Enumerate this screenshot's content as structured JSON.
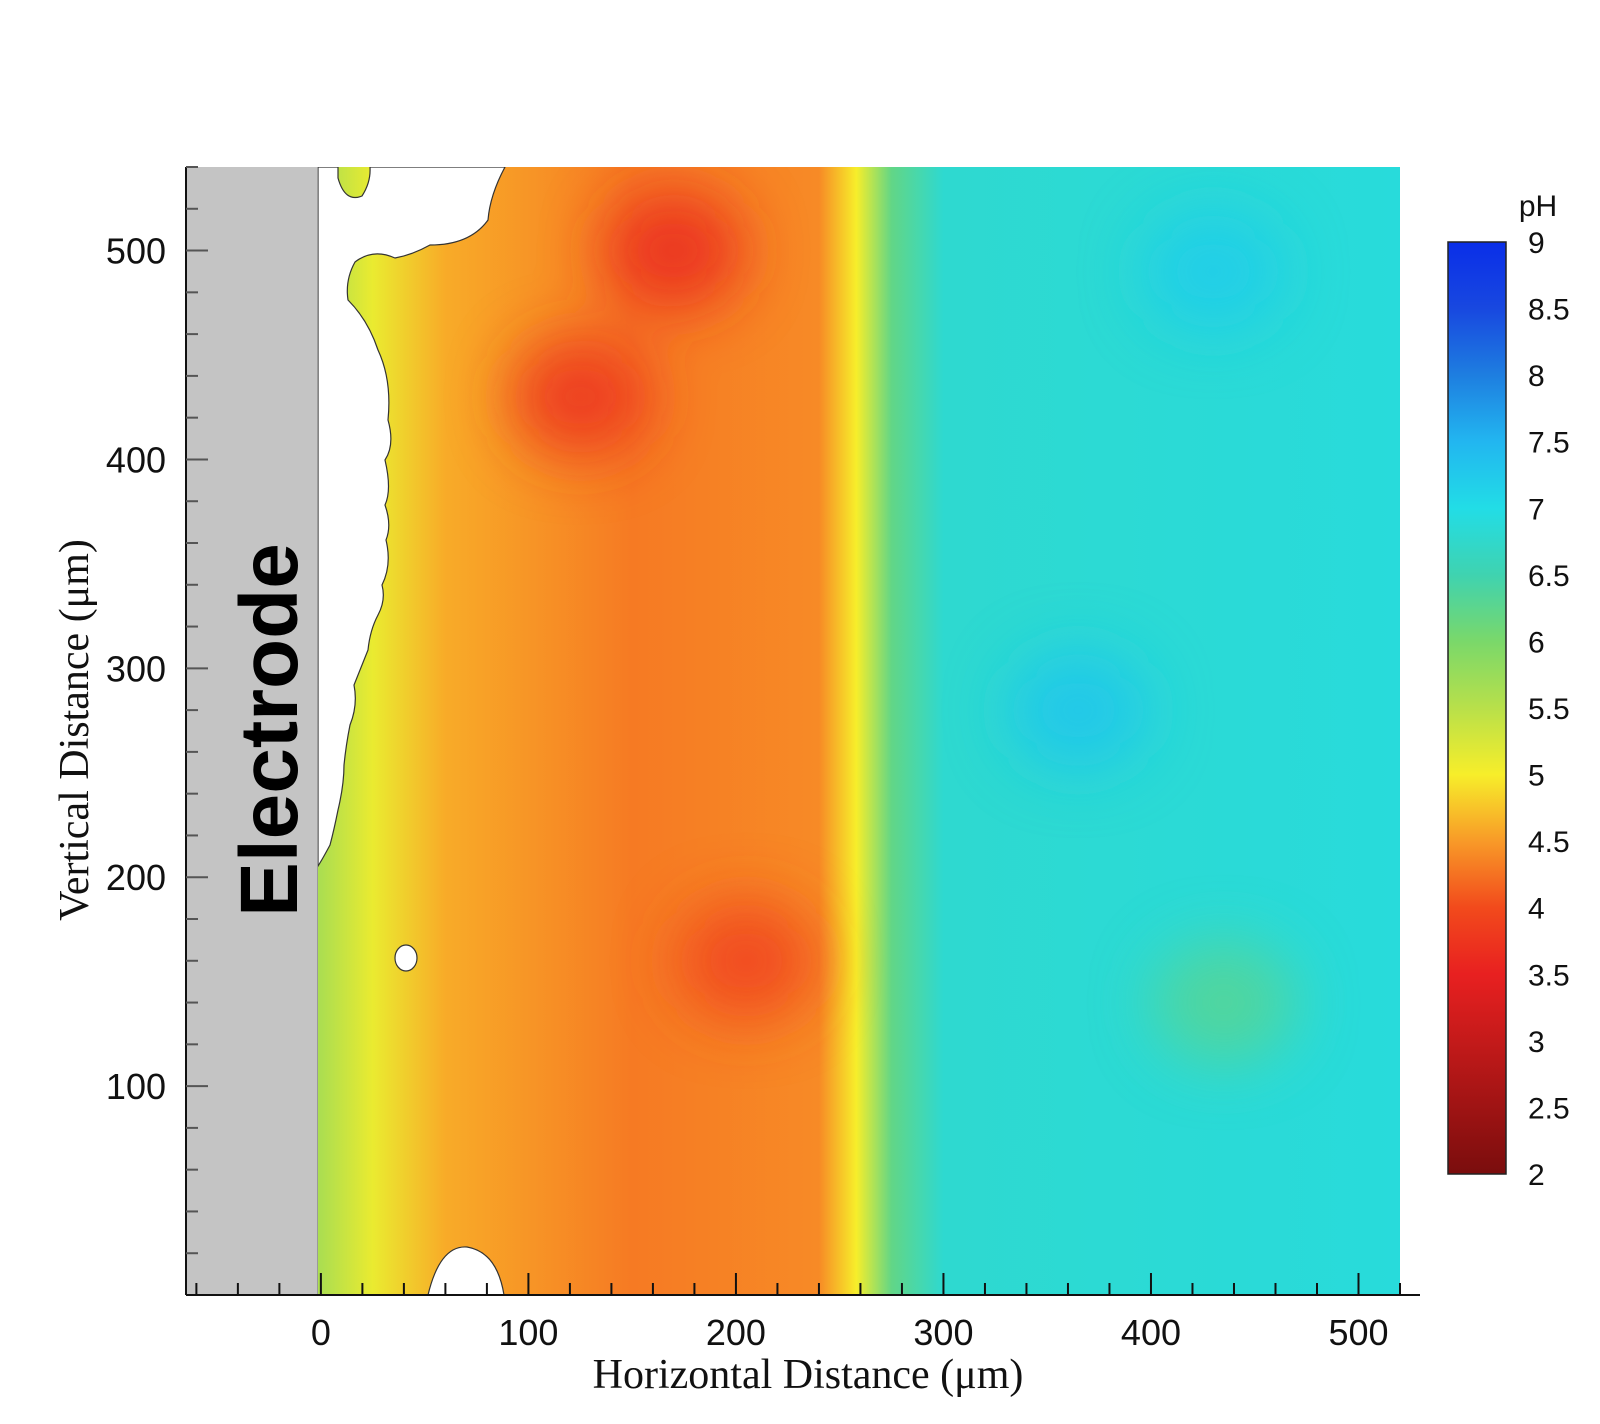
{
  "chart_data": {
    "type": "heatmap",
    "title": "",
    "xlabel": "Horizontal Distance (μm)",
    "ylabel": "Vertical Distance (μm)",
    "xlim": [
      -65,
      520
    ],
    "ylim": [
      0,
      540
    ],
    "x_ticks": [
      0,
      100,
      200,
      300,
      400,
      500
    ],
    "y_ticks": [
      100,
      200,
      300,
      400,
      500
    ],
    "electrode": {
      "label": "Electrode",
      "x_range": [
        -65,
        0
      ]
    },
    "colorbar": {
      "title": "pH",
      "min": 2,
      "max": 9,
      "ticks": [
        "2",
        "2.5",
        "3",
        "3.5",
        "4",
        "4.5",
        "5",
        "5.5",
        "6",
        "6.5",
        "7",
        "7.5",
        "8",
        "8.5",
        "9"
      ]
    },
    "colormap": [
      {
        "value": 2.0,
        "color": "#7a0d0d"
      },
      {
        "value": 3.0,
        "color": "#c41a1a"
      },
      {
        "value": 3.5,
        "color": "#e82020"
      },
      {
        "value": 4.0,
        "color": "#f24a1c"
      },
      {
        "value": 4.5,
        "color": "#f89a28"
      },
      {
        "value": 5.0,
        "color": "#f7ee2a"
      },
      {
        "value": 5.5,
        "color": "#b8e04a"
      },
      {
        "value": 6.0,
        "color": "#7ad86a"
      },
      {
        "value": 6.5,
        "color": "#3fd3b0"
      },
      {
        "value": 7.0,
        "color": "#22dde6"
      },
      {
        "value": 7.5,
        "color": "#22b6f0"
      },
      {
        "value": 8.0,
        "color": "#1e7ee0"
      },
      {
        "value": 8.5,
        "color": "#1848e0"
      },
      {
        "value": 9.0,
        "color": "#0a2ee8"
      }
    ],
    "ph_profile_by_x": [
      {
        "x": 0,
        "pH": 5.6
      },
      {
        "x": 25,
        "pH": 5.1
      },
      {
        "x": 60,
        "pH": 4.6
      },
      {
        "x": 150,
        "pH": 4.3
      },
      {
        "x": 240,
        "pH": 4.4
      },
      {
        "x": 258,
        "pH": 5.0
      },
      {
        "x": 275,
        "pH": 6.2
      },
      {
        "x": 300,
        "pH": 6.8
      },
      {
        "x": 520,
        "pH": 6.9
      }
    ],
    "features": [
      {
        "x": 170,
        "y": 500,
        "pH": 3.6
      },
      {
        "x": 125,
        "y": 430,
        "pH": 3.7
      },
      {
        "x": 205,
        "y": 160,
        "pH": 3.9
      },
      {
        "x": 365,
        "y": 280,
        "pH": 7.3
      },
      {
        "x": 430,
        "y": 490,
        "pH": 7.2
      },
      {
        "x": 435,
        "y": 140,
        "pH": 6.3
      }
    ]
  }
}
